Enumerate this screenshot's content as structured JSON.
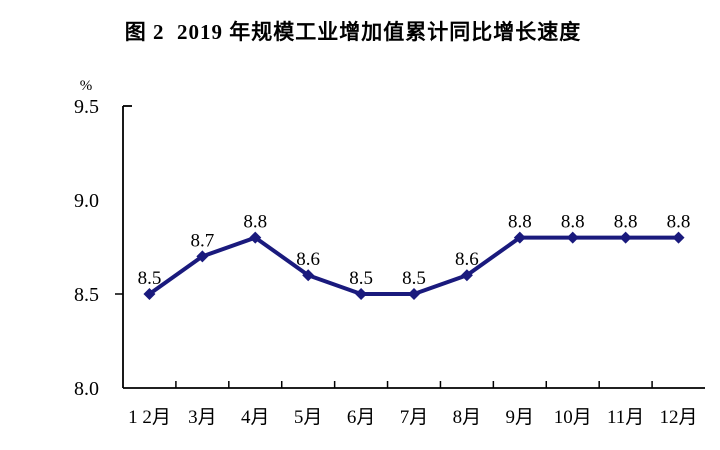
{
  "chart_data": {
    "type": "line",
    "title": "图 2  2019 年规模工业增加值累计同比增长速度",
    "ylabel": "%",
    "xlabel": "",
    "categories": [
      "1 2月",
      "3月",
      "4月",
      "5月",
      "6月",
      "7月",
      "8月",
      "9月",
      "10月",
      "11月",
      "12月"
    ],
    "values": [
      8.5,
      8.7,
      8.8,
      8.6,
      8.5,
      8.5,
      8.6,
      8.8,
      8.8,
      8.8,
      8.8
    ],
    "ylim": [
      8.0,
      9.5
    ],
    "yticks": [
      8.0,
      8.5,
      9.0,
      9.5
    ],
    "ytick_marks": [
      8.5
    ],
    "grid": false,
    "legend": "none",
    "data_labels_shown": true,
    "line_color": "#1a1a7d",
    "marker": "diamond",
    "marker_color": "#1a1a7d",
    "axis_color": "#000000",
    "text_color": "#000000"
  }
}
